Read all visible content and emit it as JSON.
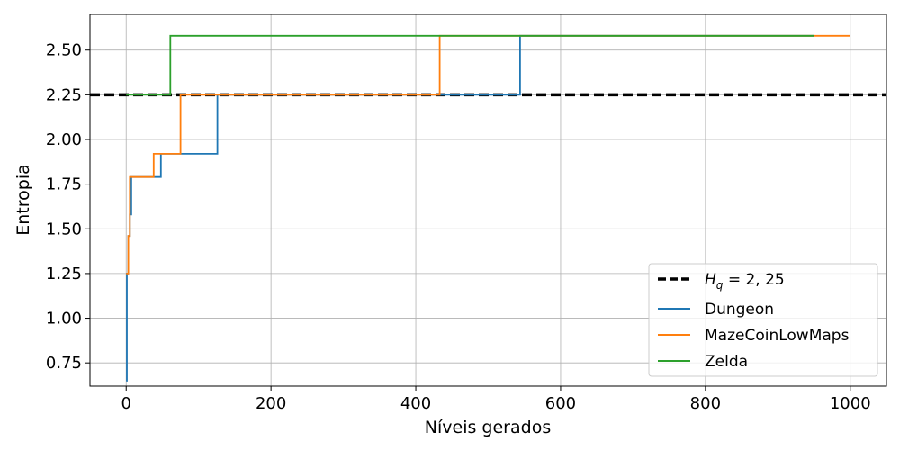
{
  "chart_data": {
    "type": "line",
    "xlabel": "Níveis gerados",
    "ylabel": "Entropia",
    "xlim": [
      -50,
      1050
    ],
    "ylim": [
      0.62,
      2.7
    ],
    "xticks": [
      "0",
      "200",
      "400",
      "600",
      "800",
      "1000"
    ],
    "yticks": [
      "0.75",
      "1.00",
      "1.25",
      "1.50",
      "1.75",
      "2.00",
      "2.25",
      "2.50"
    ],
    "grid": true,
    "legend_position": "lower-right",
    "reference_line": {
      "name_main": "H",
      "name_sub": "q",
      "name_value": " = 2, 25",
      "value": 2.25,
      "color": "#000000"
    },
    "series": [
      {
        "name": "Dungeon",
        "color": "#1f77b4",
        "x": [
          0,
          1,
          1,
          3,
          3,
          5,
          5,
          7,
          7,
          48,
          48,
          126,
          126,
          544,
          544,
          950
        ],
        "y": [
          0.65,
          0.65,
          1.25,
          1.25,
          1.46,
          1.46,
          1.58,
          1.58,
          1.79,
          1.79,
          1.92,
          1.92,
          2.25,
          2.25,
          2.58,
          2.58
        ]
      },
      {
        "name": "MazeCoinLowMaps",
        "color": "#ff7f0e",
        "x": [
          0,
          3,
          3,
          5,
          5,
          38,
          38,
          75,
          75,
          433,
          433,
          1000
        ],
        "y": [
          1.25,
          1.25,
          1.46,
          1.46,
          1.79,
          1.79,
          1.92,
          1.92,
          2.25,
          2.25,
          2.58,
          2.58
        ]
      },
      {
        "name": "Zelda",
        "color": "#2ca02c",
        "x": [
          0,
          61,
          61,
          950
        ],
        "y": [
          2.25,
          2.25,
          2.58,
          2.58
        ]
      }
    ]
  }
}
